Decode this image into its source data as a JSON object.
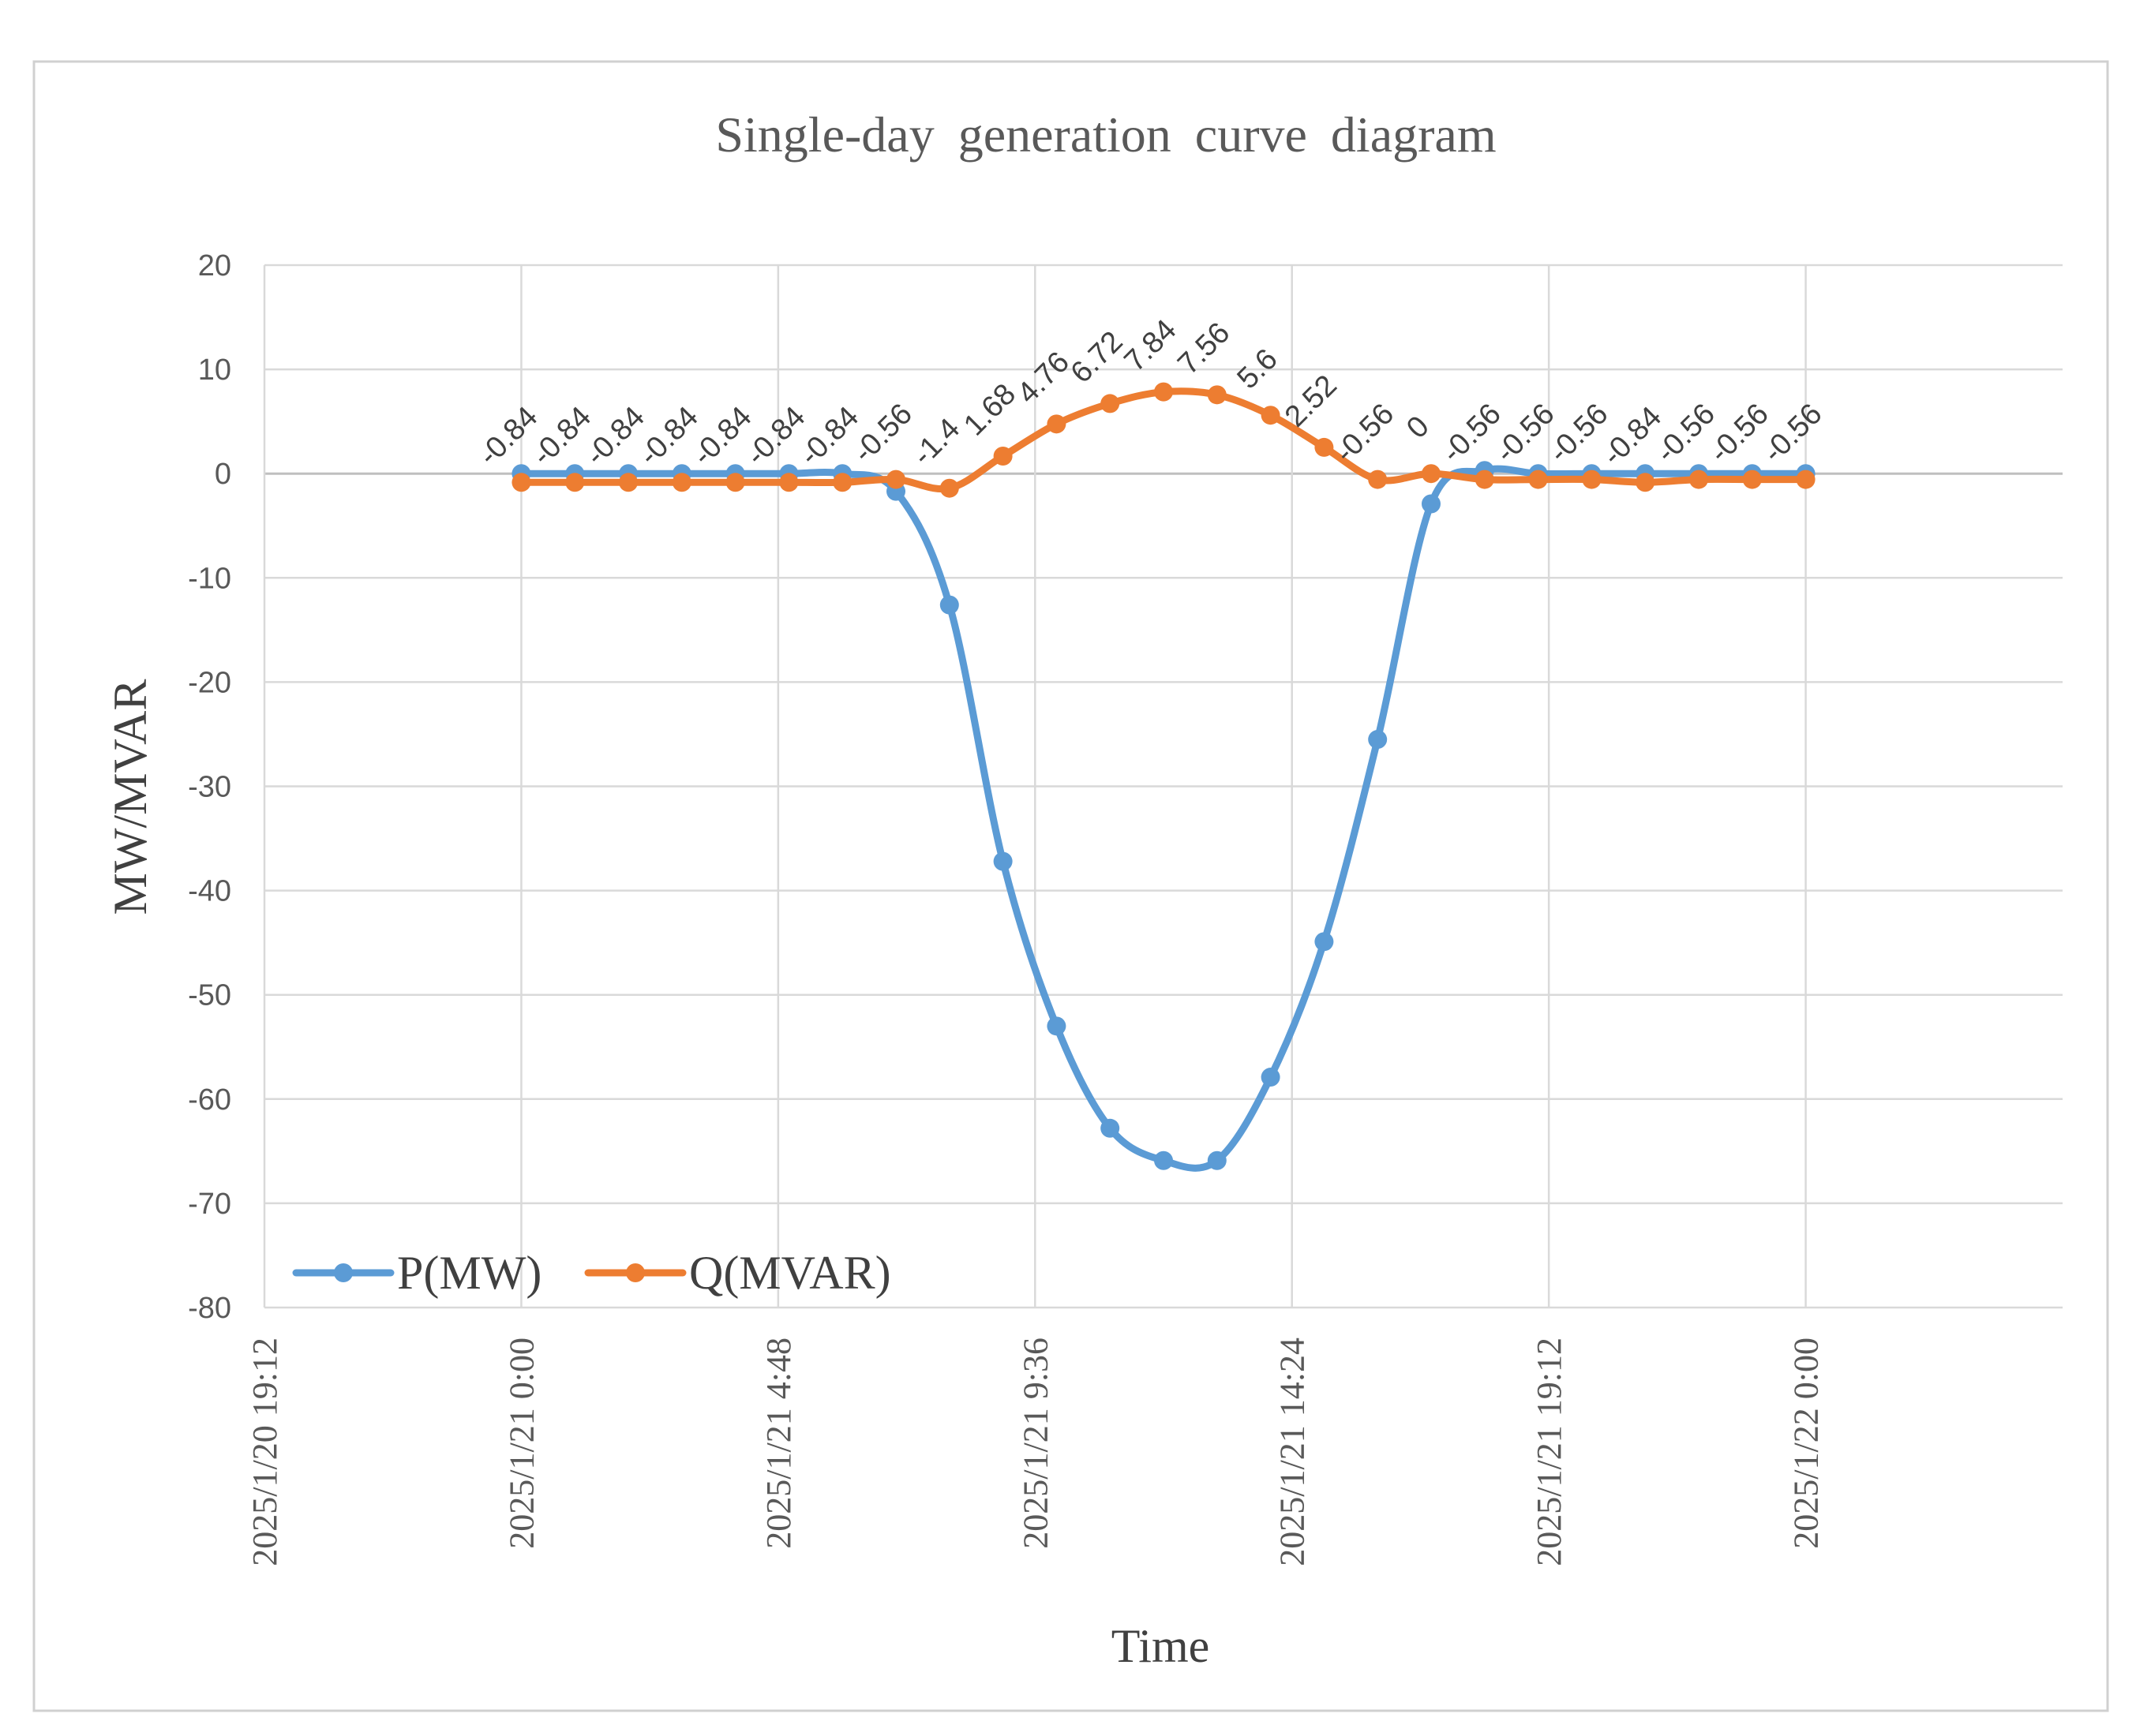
{
  "chart_data": {
    "type": "line",
    "title": "Single-day  generation  curve  diagram",
    "xlabel": "Time",
    "ylabel": "MW/MVAR",
    "ylim": [
      -80,
      20
    ],
    "y_ticks": [
      "20",
      "10",
      "0",
      "-10",
      "-20",
      "-30",
      "-40",
      "-50",
      "-60",
      "-70",
      "-80"
    ],
    "x_ticks": [
      "2025/1/20 19:12",
      "2025/1/21 0:00",
      "2025/1/21 4:48",
      "2025/1/21 9:36",
      "2025/1/21 14:24",
      "2025/1/21 19:12",
      "2025/1/22 0:00"
    ],
    "x_tick_hours": [
      -4.8,
      0,
      4.8,
      9.6,
      14.4,
      19.2,
      24
    ],
    "xlim_hours": [
      -4.8,
      28.8
    ],
    "x_hours": [
      0,
      1,
      2,
      3,
      4,
      5,
      6,
      7,
      8,
      9,
      10,
      11,
      12,
      13,
      14,
      15,
      16,
      17,
      18,
      19,
      20,
      21,
      22,
      23,
      24
    ],
    "series": [
      {
        "name": "P(MW)",
        "color": "#5B9BD5",
        "values": [
          0,
          0,
          0,
          0,
          0,
          0,
          0,
          -1.7,
          -12.6,
          -37.2,
          -53.0,
          -62.8,
          -65.9,
          -65.9,
          -57.9,
          -44.9,
          -25.5,
          -2.9,
          0.3,
          0,
          0,
          0,
          0,
          0,
          0
        ]
      },
      {
        "name": "Q(MVAR)",
        "color": "#ED7D31",
        "values": [
          -0.84,
          -0.84,
          -0.84,
          -0.84,
          -0.84,
          -0.84,
          -0.84,
          -0.56,
          -1.4,
          1.68,
          4.76,
          6.72,
          7.84,
          7.56,
          5.6,
          2.52,
          -0.56,
          0,
          -0.56,
          -0.56,
          -0.56,
          -0.84,
          -0.56,
          -0.56,
          -0.56
        ],
        "labels": [
          "-0.84",
          "-0.84",
          "-0.84",
          "-0.84",
          "-0.84",
          "-0.84",
          "-0.84",
          "-0.56",
          "-1.4",
          "1.68",
          "4.76",
          "6.72",
          "7.84",
          "7.56",
          "5.6",
          "2.52",
          "-0.56",
          "0",
          "-0.56",
          "-0.56",
          "-0.56",
          "-0.84",
          "-0.56",
          "-0.56",
          "-0.56"
        ]
      }
    ],
    "grid": true,
    "legend_position": "bottom-left"
  }
}
